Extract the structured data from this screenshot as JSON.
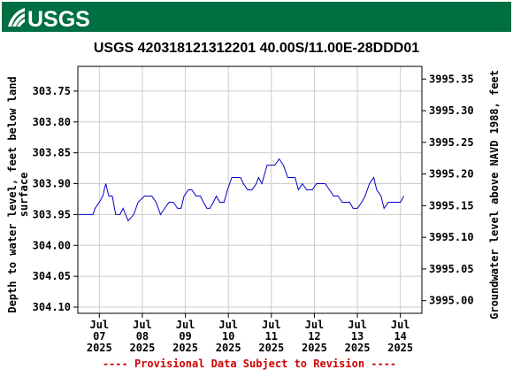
{
  "header": {
    "logo_text": "USGS",
    "banner_color": "#006f41"
  },
  "chart_data": {
    "type": "line",
    "title": "USGS 420318121312201 40.00S/11.00E-28DDD01",
    "ylabel_left": [
      "Depth to water level, feet below land",
      "surface"
    ],
    "ylabel_right": "Groundwater level above NAVD 1988, feet",
    "y_left_ticks": [
      "303.75",
      "303.80",
      "303.85",
      "303.90",
      "303.95",
      "304.00",
      "304.05",
      "304.10"
    ],
    "y_left_range": [
      303.71,
      304.11
    ],
    "y_left_inverted": true,
    "y_right_ticks": [
      "3995.35",
      "3995.30",
      "3995.25",
      "3995.20",
      "3995.15",
      "3995.10",
      "3995.05",
      "3995.00"
    ],
    "y_right_range": [
      3994.98,
      3995.37
    ],
    "x_ticks": [
      {
        "day": 7,
        "label": [
          "Jul",
          "07",
          "2025"
        ]
      },
      {
        "day": 8,
        "label": [
          "Jul",
          "08",
          "2025"
        ]
      },
      {
        "day": 9,
        "label": [
          "Jul",
          "09",
          "2025"
        ]
      },
      {
        "day": 10,
        "label": [
          "Jul",
          "10",
          "2025"
        ]
      },
      {
        "day": 11,
        "label": [
          "Jul",
          "11",
          "2025"
        ]
      },
      {
        "day": 12,
        "label": [
          "Jul",
          "12",
          "2025"
        ]
      },
      {
        "day": 13,
        "label": [
          "Jul",
          "13",
          "2025"
        ]
      },
      {
        "day": 14,
        "label": [
          "Jul",
          "14",
          "2025"
        ]
      }
    ],
    "x_range_days": [
      6.5,
      14.5
    ],
    "x_unit": "day of July 2025",
    "grid": true,
    "line_color": "#0000cc",
    "series": [
      {
        "points": [
          [
            6.52,
            303.95
          ],
          [
            6.85,
            303.95
          ],
          [
            6.9,
            303.94
          ],
          [
            7.0,
            303.93
          ],
          [
            7.08,
            303.92
          ],
          [
            7.15,
            303.9
          ],
          [
            7.22,
            303.92
          ],
          [
            7.3,
            303.92
          ],
          [
            7.38,
            303.95
          ],
          [
            7.48,
            303.95
          ],
          [
            7.55,
            303.94
          ],
          [
            7.67,
            303.96
          ],
          [
            7.8,
            303.95
          ],
          [
            7.9,
            303.93
          ],
          [
            8.05,
            303.92
          ],
          [
            8.22,
            303.92
          ],
          [
            8.32,
            303.93
          ],
          [
            8.42,
            303.95
          ],
          [
            8.52,
            303.94
          ],
          [
            8.62,
            303.93
          ],
          [
            8.72,
            303.93
          ],
          [
            8.82,
            303.94
          ],
          [
            8.9,
            303.94
          ],
          [
            8.97,
            303.92
          ],
          [
            9.07,
            303.91
          ],
          [
            9.15,
            303.91
          ],
          [
            9.25,
            303.92
          ],
          [
            9.35,
            303.92
          ],
          [
            9.42,
            303.93
          ],
          [
            9.5,
            303.94
          ],
          [
            9.57,
            303.94
          ],
          [
            9.65,
            303.93
          ],
          [
            9.72,
            303.92
          ],
          [
            9.8,
            303.93
          ],
          [
            9.9,
            303.93
          ],
          [
            9.98,
            303.91
          ],
          [
            10.08,
            303.89
          ],
          [
            10.2,
            303.89
          ],
          [
            10.28,
            303.89
          ],
          [
            10.35,
            303.9
          ],
          [
            10.45,
            303.91
          ],
          [
            10.55,
            303.91
          ],
          [
            10.65,
            303.9
          ],
          [
            10.7,
            303.89
          ],
          [
            10.78,
            303.9
          ],
          [
            10.9,
            303.87
          ],
          [
            11.08,
            303.87
          ],
          [
            11.18,
            303.86
          ],
          [
            11.28,
            303.87
          ],
          [
            11.38,
            303.89
          ],
          [
            11.55,
            303.89
          ],
          [
            11.63,
            303.91
          ],
          [
            11.72,
            303.9
          ],
          [
            11.82,
            303.91
          ],
          [
            11.95,
            303.91
          ],
          [
            12.05,
            303.9
          ],
          [
            12.25,
            303.9
          ],
          [
            12.35,
            303.91
          ],
          [
            12.45,
            303.92
          ],
          [
            12.55,
            303.92
          ],
          [
            12.65,
            303.93
          ],
          [
            12.82,
            303.93
          ],
          [
            12.9,
            303.94
          ],
          [
            13.0,
            303.94
          ],
          [
            13.1,
            303.93
          ],
          [
            13.18,
            303.92
          ],
          [
            13.28,
            303.9
          ],
          [
            13.38,
            303.89
          ],
          [
            13.45,
            303.91
          ],
          [
            13.55,
            303.92
          ],
          [
            13.62,
            303.94
          ],
          [
            13.72,
            303.93
          ],
          [
            14.0,
            303.93
          ],
          [
            14.08,
            303.92
          ]
        ]
      }
    ],
    "footer_note": "---- Provisional Data Subject to Revision ----"
  }
}
